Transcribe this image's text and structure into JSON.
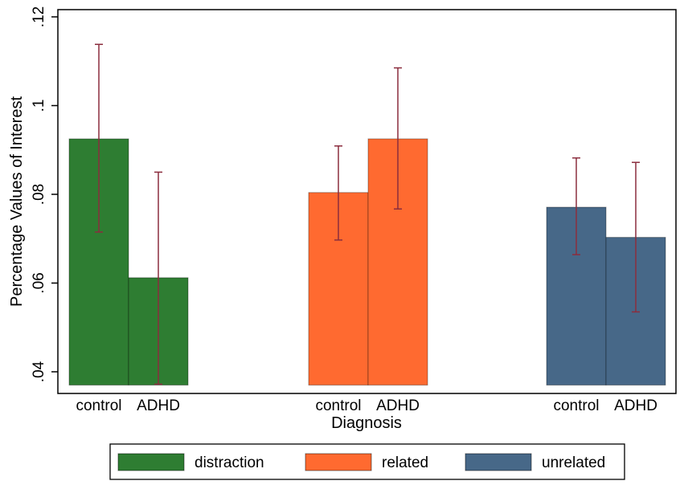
{
  "chart_data": {
    "type": "bar",
    "title": "",
    "xlabel": "Diagnosis",
    "ylabel": "Percentage Values of Interest",
    "ylim": [
      0.037,
      0.122
    ],
    "bar_base": 0.037,
    "yticks": [
      0.04,
      0.06,
      0.08,
      0.1,
      0.12
    ],
    "ytick_labels": [
      ".04",
      ".06",
      ".08",
      ".1",
      ".12"
    ],
    "grid": false,
    "legend_position": "bottom",
    "groups": [
      {
        "name": "distraction",
        "color": "#2e7d32",
        "bars": [
          {
            "category": "control",
            "value": 0.0925,
            "ci_low": 0.0715,
            "ci_high": 0.1138
          },
          {
            "category": "ADHD",
            "value": 0.0612,
            "ci_low": 0.0372,
            "ci_high": 0.085
          }
        ]
      },
      {
        "name": "related",
        "color": "#ff6a30",
        "bars": [
          {
            "category": "control",
            "value": 0.0804,
            "ci_low": 0.0697,
            "ci_high": 0.0909
          },
          {
            "category": "ADHD",
            "value": 0.0925,
            "ci_low": 0.0767,
            "ci_high": 0.1085
          }
        ]
      },
      {
        "name": "unrelated",
        "color": "#476888",
        "bars": [
          {
            "category": "control",
            "value": 0.0771,
            "ci_low": 0.0664,
            "ci_high": 0.0882
          },
          {
            "category": "ADHD",
            "value": 0.0703,
            "ci_low": 0.0535,
            "ci_high": 0.0872
          }
        ]
      }
    ],
    "legend": [
      "distraction",
      "related",
      "unrelated"
    ],
    "errorbar_color": "#8b2d3e"
  }
}
